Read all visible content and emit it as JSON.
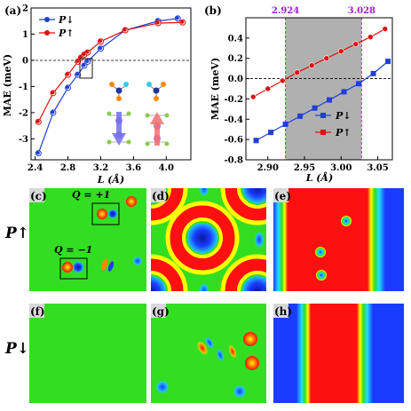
{
  "panel_labels": {
    "a": "(a)",
    "b": "(b)",
    "c": "(c)",
    "d": "(d)",
    "e": "(e)",
    "f": "(f)",
    "g": "(g)",
    "h": "(h)"
  },
  "row_labels": {
    "up": "P↑",
    "down": "P↓"
  },
  "annotations": {
    "q_plus": "Q = +1",
    "q_minus": "Q = −1"
  },
  "colors": {
    "down": "#1f3fd6",
    "up": "#e01010",
    "band": "#b0b0b0",
    "band_edge": "#b030c8",
    "map_green": "#33dd22",
    "map_red": "#ff1010",
    "map_blue": "#1a3cff"
  },
  "chart_data": [
    {
      "type": "line",
      "xlabel": "L (Å)",
      "ylabel": "MAE (meV)",
      "xlim": [
        2.35,
        4.3
      ],
      "ylim": [
        -3.8,
        2.0
      ],
      "xticks": [
        "2.4",
        "2.8",
        "3.2",
        "3.6",
        "4.0"
      ],
      "yticks": [
        "-3",
        "-2",
        "-1",
        "0",
        "1",
        "2"
      ],
      "legend_position": "top-left",
      "series": [
        {
          "name": "P↓",
          "x": [
            2.44,
            2.62,
            2.8,
            2.92,
            3.0,
            3.04,
            3.2,
            3.5,
            3.9,
            4.14
          ],
          "y": [
            -3.55,
            -2.0,
            -1.05,
            -0.55,
            -0.2,
            -0.05,
            0.45,
            1.15,
            1.5,
            1.6
          ]
        },
        {
          "name": "P↑",
          "x": [
            2.44,
            2.62,
            2.8,
            2.92,
            2.96,
            3.0,
            3.04,
            3.2,
            3.5,
            3.9,
            4.2
          ],
          "y": [
            -2.35,
            -1.25,
            -0.55,
            -0.05,
            0.1,
            0.22,
            0.3,
            0.72,
            1.15,
            1.42,
            1.45
          ]
        }
      ]
    },
    {
      "type": "line",
      "xlabel": "L (Å)",
      "ylabel": "MAE (meV)",
      "xlim": [
        2.87,
        3.07
      ],
      "ylim": [
        -0.8,
        0.6
      ],
      "xticks": [
        "2.90",
        "2.95",
        "3.00",
        "3.05"
      ],
      "yticks": [
        "-0.8",
        "-0.6",
        "-0.4",
        "-0.2",
        "0.0",
        "0.2",
        "0.4"
      ],
      "band": [
        2.924,
        3.028
      ],
      "band_labels": [
        "2.924",
        "3.028"
      ],
      "legend_position": "bottom-right",
      "series": [
        {
          "name": "P↓",
          "x": [
            2.884,
            2.904,
            2.924,
            2.944,
            2.964,
            2.984,
            3.004,
            3.024,
            3.044,
            3.064
          ],
          "y": [
            -0.61,
            -0.53,
            -0.45,
            -0.37,
            -0.29,
            -0.21,
            -0.13,
            -0.05,
            0.05,
            0.17
          ]
        },
        {
          "name": "P↑",
          "x": [
            2.88,
            2.9,
            2.92,
            2.94,
            2.96,
            2.98,
            3.0,
            3.02,
            3.04,
            3.06
          ],
          "y": [
            -0.18,
            -0.1,
            -0.02,
            0.06,
            0.13,
            0.2,
            0.27,
            0.34,
            0.41,
            0.49
          ]
        }
      ]
    }
  ]
}
